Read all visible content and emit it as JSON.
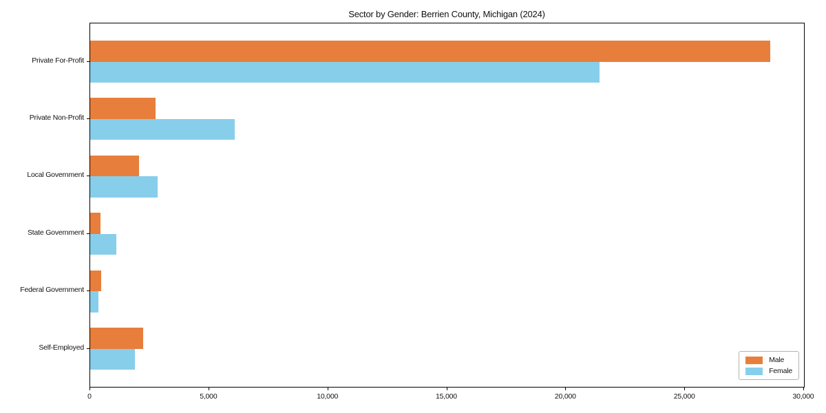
{
  "title": "Sector by Gender: Berrien County, Michigan (2024)",
  "colors": {
    "male_bar": "#e87e3c",
    "female_bar": "#87ceeb",
    "axis": "#000000",
    "legend_border": "#b3b3b3",
    "background": "#ffffff"
  },
  "chart_data": {
    "type": "bar",
    "orientation": "horizontal",
    "title": "Sector by Gender: Berrien County, Michigan (2024)",
    "xlabel": "",
    "ylabel": "",
    "categories": [
      "Private For-Profit",
      "Private Non-Profit",
      "Local Government",
      "State Government",
      "Federal Government",
      "Self-Employed"
    ],
    "series": [
      {
        "name": "Male",
        "color": "#e87e3c",
        "values": [
          28580,
          2750,
          2050,
          430,
          450,
          2230
        ]
      },
      {
        "name": "Female",
        "color": "#87ceeb",
        "values": [
          21420,
          6070,
          2830,
          1100,
          350,
          1880
        ]
      }
    ],
    "xlim": [
      0,
      30000
    ],
    "x_ticks": [
      0,
      5000,
      10000,
      15000,
      20000,
      25000,
      30000
    ],
    "x_tick_labels": [
      "0",
      "5,000",
      "10,000",
      "15,000",
      "20,000",
      "25,000",
      "30,000"
    ],
    "grid": false,
    "legend": {
      "position": "lower right",
      "entries": [
        "Male",
        "Female"
      ]
    }
  }
}
